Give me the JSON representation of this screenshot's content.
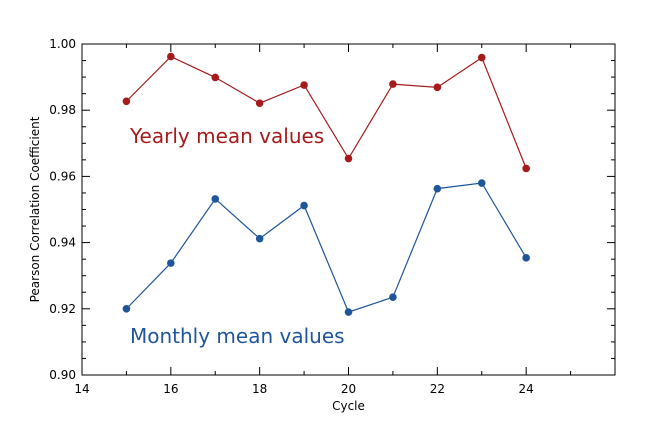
{
  "chart_data": {
    "type": "line",
    "xlabel": "Cycle",
    "ylabel": "Pearson Correlation Coefficient",
    "xlim": [
      14,
      26
    ],
    "ylim": [
      0.9,
      1.0
    ],
    "x_ticks": [
      "14",
      "16",
      "18",
      "20",
      "22",
      "24"
    ],
    "y_ticks": [
      "0.90",
      "0.92",
      "0.94",
      "0.96",
      "0.98",
      "1.00"
    ],
    "x": [
      15,
      16,
      17,
      18,
      19,
      20,
      21,
      22,
      23,
      24
    ],
    "grid": false,
    "legend": "none",
    "series": [
      {
        "name": "Yearly mean values",
        "color": "#a51b1b",
        "values": [
          0.9827,
          0.9962,
          0.9899,
          0.9821,
          0.9876,
          0.9654,
          0.9879,
          0.9869,
          0.9959,
          0.9624
        ]
      },
      {
        "name": "Monthly mean values",
        "color": "#1f569a",
        "values": [
          0.92,
          0.9338,
          0.9532,
          0.9412,
          0.9512,
          0.919,
          0.9235,
          0.9563,
          0.958,
          0.9354
        ]
      }
    ]
  }
}
